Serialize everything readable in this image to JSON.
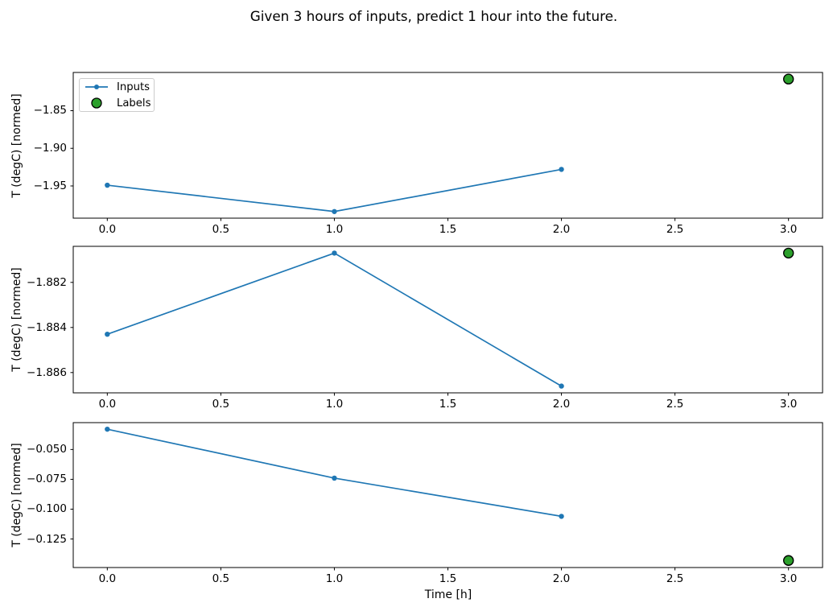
{
  "title": "Given 3 hours of inputs, predict 1 hour into the future.",
  "chart_data": {
    "type": "line",
    "title": "Given 3 hours of inputs, predict 1 hour into the future.",
    "xlabel": "Time [h]",
    "xlim": [
      -0.15,
      3.15
    ],
    "xticks": {
      "values": [
        0,
        0.5,
        1,
        1.5,
        2,
        2.5,
        3
      ],
      "labels": [
        "0.0",
        "0.5",
        "1.0",
        "1.5",
        "2.0",
        "2.5",
        "3.0"
      ]
    },
    "legend": {
      "position": "upper left",
      "entries": [
        {
          "label": "Inputs",
          "type": "line-with-marker"
        },
        {
          "label": "Labels",
          "type": "circle-marker"
        }
      ]
    },
    "colors": {
      "inputs": "#1f77b4",
      "labels_fill": "#2ca02c",
      "labels_edge": "#000000",
      "spine": "#000000",
      "legend_border": "#cccccc"
    },
    "subplots": [
      {
        "ylabel": "T (degC) [normed]",
        "ylim": [
          -1.9928,
          -1.7992
        ],
        "yticks": {
          "values": [
            -1.85,
            -1.9,
            -1.95
          ],
          "labels": [
            "−1.85",
            "−1.90",
            "−1.95"
          ]
        },
        "inputs": {
          "x": [
            0,
            1,
            2
          ],
          "y": [
            -1.949,
            -1.984,
            -1.928
          ]
        },
        "label_point": {
          "x": 3,
          "y": -1.808
        }
      },
      {
        "ylabel": "T (degC) [normed]",
        "ylim": [
          -1.8869,
          -1.8804
        ],
        "yticks": {
          "values": [
            -1.882,
            -1.884,
            -1.886
          ],
          "labels": [
            "−1.882",
            "−1.884",
            "−1.886"
          ]
        },
        "inputs": {
          "x": [
            0,
            1,
            2
          ],
          "y": [
            -1.8843,
            -1.8807,
            -1.8866
          ]
        },
        "label_point": {
          "x": 3,
          "y": -1.8807
        }
      },
      {
        "ylabel": "T (degC) [normed]",
        "ylim": [
          -0.1489,
          -0.0275
        ],
        "yticks": {
          "values": [
            -0.05,
            -0.075,
            -0.1,
            -0.125
          ],
          "labels": [
            "−0.050",
            "−0.075",
            "−0.100",
            "−0.125"
          ]
        },
        "inputs": {
          "x": [
            0,
            1,
            2
          ],
          "y": [
            -0.033,
            -0.074,
            -0.106
          ]
        },
        "label_point": {
          "x": 3,
          "y": -0.143
        }
      }
    ]
  }
}
